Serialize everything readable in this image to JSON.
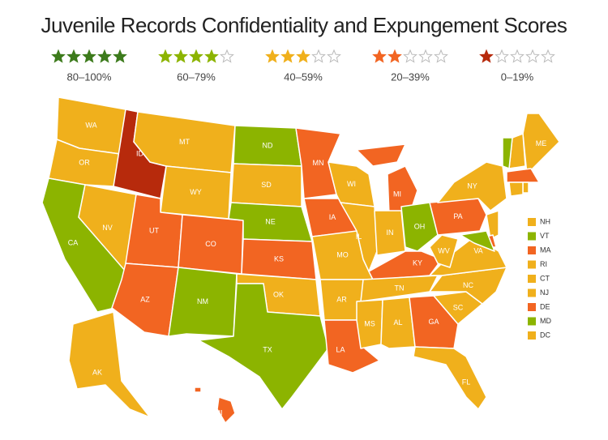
{
  "title": "Juvenile Records Confidentiality and Expungement Scores",
  "legend": [
    {
      "stars": 5,
      "label": "80–100%",
      "color": "#3d7b1c"
    },
    {
      "stars": 4,
      "label": "60–79%",
      "color": "#8cb400"
    },
    {
      "stars": 3,
      "label": "40–59%",
      "color": "#f0b01c"
    },
    {
      "stars": 2,
      "label": "20–39%",
      "color": "#f26522"
    },
    {
      "stars": 1,
      "label": "0–19%",
      "color": "#b72a0c"
    }
  ],
  "states": [
    {
      "abbr": "WA",
      "color": "#f0b01c"
    },
    {
      "abbr": "OR",
      "color": "#f0b01c"
    },
    {
      "abbr": "CA",
      "color": "#8cb400"
    },
    {
      "abbr": "NV",
      "color": "#f0b01c"
    },
    {
      "abbr": "ID",
      "color": "#b72a0c"
    },
    {
      "abbr": "MT",
      "color": "#f0b01c"
    },
    {
      "abbr": "WY",
      "color": "#f0b01c"
    },
    {
      "abbr": "UT",
      "color": "#f26522"
    },
    {
      "abbr": "CO",
      "color": "#f26522"
    },
    {
      "abbr": "AZ",
      "color": "#f26522"
    },
    {
      "abbr": "NM",
      "color": "#8cb400"
    },
    {
      "abbr": "ND",
      "color": "#8cb400"
    },
    {
      "abbr": "SD",
      "color": "#f0b01c"
    },
    {
      "abbr": "NE",
      "color": "#8cb400"
    },
    {
      "abbr": "KS",
      "color": "#f26522"
    },
    {
      "abbr": "OK",
      "color": "#f0b01c"
    },
    {
      "abbr": "TX",
      "color": "#8cb400"
    },
    {
      "abbr": "MN",
      "color": "#f26522"
    },
    {
      "abbr": "IA",
      "color": "#f26522"
    },
    {
      "abbr": "MO",
      "color": "#f0b01c"
    },
    {
      "abbr": "AR",
      "color": "#f0b01c"
    },
    {
      "abbr": "LA",
      "color": "#f26522"
    },
    {
      "abbr": "WI",
      "color": "#f0b01c"
    },
    {
      "abbr": "IL",
      "color": "#f0b01c"
    },
    {
      "abbr": "MI",
      "color": "#f26522"
    },
    {
      "abbr": "IN",
      "color": "#f0b01c"
    },
    {
      "abbr": "OH",
      "color": "#8cb400"
    },
    {
      "abbr": "KY",
      "color": "#f26522"
    },
    {
      "abbr": "TN",
      "color": "#f0b01c"
    },
    {
      "abbr": "MS",
      "color": "#f0b01c"
    },
    {
      "abbr": "AL",
      "color": "#f0b01c"
    },
    {
      "abbr": "GA",
      "color": "#f26522"
    },
    {
      "abbr": "FL",
      "color": "#f0b01c"
    },
    {
      "abbr": "SC",
      "color": "#f0b01c"
    },
    {
      "abbr": "NC",
      "color": "#f0b01c"
    },
    {
      "abbr": "VA",
      "color": "#f0b01c"
    },
    {
      "abbr": "WV",
      "color": "#f0b01c"
    },
    {
      "abbr": "PA",
      "color": "#f26522"
    },
    {
      "abbr": "NY",
      "color": "#f0b01c"
    },
    {
      "abbr": "ME",
      "color": "#f0b01c"
    },
    {
      "abbr": "AK",
      "color": "#f0b01c"
    },
    {
      "abbr": "HI",
      "color": "#f26522"
    }
  ],
  "small_states": [
    {
      "abbr": "NH",
      "color": "#f0b01c"
    },
    {
      "abbr": "VT",
      "color": "#8cb400"
    },
    {
      "abbr": "MA",
      "color": "#f26522"
    },
    {
      "abbr": "RI",
      "color": "#f0b01c"
    },
    {
      "abbr": "CT",
      "color": "#f0b01c"
    },
    {
      "abbr": "NJ",
      "color": "#f0b01c"
    },
    {
      "abbr": "DE",
      "color": "#f26522"
    },
    {
      "abbr": "MD",
      "color": "#8cb400"
    },
    {
      "abbr": "DC",
      "color": "#f0b01c"
    }
  ]
}
